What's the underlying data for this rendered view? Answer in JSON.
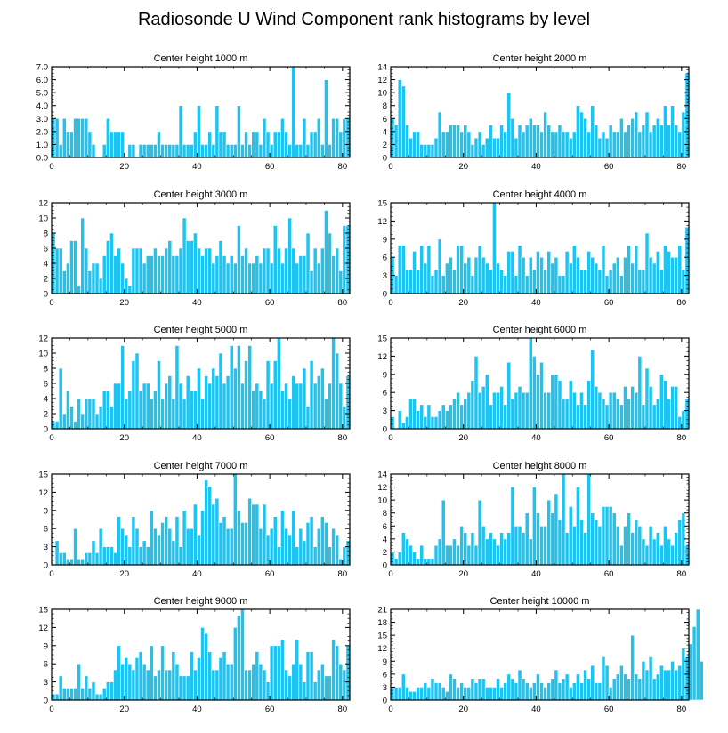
{
  "title": "Radiosonde U Wind Component rank histograms by level",
  "colors": {
    "bar": "#1ec3f0",
    "frame": "#000000",
    "background": "#ffffff"
  },
  "chart_data": [
    {
      "type": "bar",
      "title": "Center height 1000 m",
      "xlim": [
        0,
        82
      ],
      "ylim": [
        0,
        7
      ],
      "xticks": [
        0,
        20,
        40,
        60,
        80
      ],
      "yticks": [
        0,
        1,
        2,
        3,
        4,
        5,
        6,
        7
      ],
      "ytick_labels": [
        "0.0",
        "1.0",
        "2.0",
        "3.0",
        "4.0",
        "5.0",
        "6.0",
        "7.0"
      ],
      "values": [
        3,
        3,
        1,
        3,
        2,
        2,
        3,
        3,
        3,
        3,
        2,
        1,
        0,
        0,
        1,
        3,
        2,
        2,
        2,
        2,
        0,
        1,
        1,
        0,
        1,
        1,
        1,
        1,
        1,
        2,
        1,
        1,
        1,
        1,
        1,
        4,
        1,
        1,
        1,
        2,
        4,
        1,
        1,
        2,
        1,
        4,
        2,
        2,
        1,
        1,
        1,
        4,
        1,
        2,
        1,
        2,
        2,
        1,
        3,
        2,
        1,
        2,
        2,
        3,
        2,
        1,
        7,
        1,
        1,
        3,
        1,
        2,
        2,
        3,
        1,
        6,
        1,
        3,
        3,
        2,
        3,
        3
      ]
    },
    {
      "type": "bar",
      "title": "Center height 2000 m",
      "xlim": [
        0,
        82
      ],
      "ylim": [
        0,
        14
      ],
      "xticks": [
        0,
        20,
        40,
        60,
        80
      ],
      "yticks": [
        0,
        2,
        4,
        6,
        8,
        10,
        12,
        14
      ],
      "ytick_labels": [
        "0",
        "2",
        "4",
        "6",
        "8",
        "10",
        "12",
        "14"
      ],
      "values": [
        6,
        5,
        12,
        11,
        5,
        3,
        4,
        4,
        2,
        2,
        2,
        2,
        3,
        7,
        4,
        4,
        5,
        5,
        5,
        4,
        5,
        4,
        2,
        3,
        4,
        2,
        3,
        5,
        3,
        3,
        5,
        4,
        10,
        6,
        3,
        5,
        4,
        5,
        6,
        5,
        5,
        4,
        7,
        5,
        4,
        4,
        5,
        4,
        4,
        3,
        4,
        8,
        7,
        6,
        4,
        8,
        5,
        3,
        4,
        3,
        5,
        4,
        4,
        6,
        4,
        5,
        6,
        7,
        4,
        5,
        7,
        4,
        5,
        6,
        5,
        8,
        5,
        8,
        5,
        4,
        7,
        13
      ]
    },
    {
      "type": "bar",
      "title": "Center height 3000 m",
      "xlim": [
        0,
        82
      ],
      "ylim": [
        0,
        12
      ],
      "xticks": [
        0,
        20,
        40,
        60,
        80
      ],
      "yticks": [
        0,
        2,
        4,
        6,
        8,
        10,
        12
      ],
      "ytick_labels": [
        "0",
        "2",
        "4",
        "6",
        "8",
        "10",
        "12"
      ],
      "values": [
        8,
        6,
        6,
        3,
        4,
        7,
        7,
        1,
        10,
        6,
        3,
        4,
        4,
        2,
        5,
        7,
        8,
        5,
        6,
        4,
        2,
        1,
        6,
        6,
        6,
        4,
        5,
        5,
        6,
        5,
        5,
        6,
        7,
        5,
        5,
        6,
        10,
        7,
        7,
        8,
        6,
        5,
        6,
        6,
        4,
        5,
        7,
        5,
        4,
        5,
        4,
        9,
        5,
        6,
        4,
        4,
        5,
        4,
        6,
        6,
        4,
        9,
        6,
        4,
        6,
        10,
        6,
        4,
        5,
        5,
        8,
        3,
        6,
        4,
        6,
        11,
        8,
        5,
        6,
        3,
        9,
        9
      ]
    },
    {
      "type": "bar",
      "title": "Center height 4000 m",
      "xlim": [
        0,
        82
      ],
      "ylim": [
        0,
        15
      ],
      "xticks": [
        0,
        20,
        40,
        60,
        80
      ],
      "yticks": [
        0,
        3,
        6,
        9,
        12,
        15
      ],
      "ytick_labels": [
        "0",
        "3",
        "6",
        "9",
        "12",
        "15"
      ],
      "values": [
        6,
        3,
        8,
        8,
        4,
        4,
        7,
        4,
        8,
        5,
        8,
        3,
        4,
        9,
        3,
        5,
        6,
        4,
        8,
        8,
        5,
        6,
        3,
        6,
        8,
        6,
        5,
        4,
        15,
        5,
        4,
        3,
        7,
        7,
        3,
        8,
        6,
        3,
        6,
        4,
        7,
        6,
        4,
        7,
        5,
        6,
        3,
        3,
        7,
        5,
        8,
        6,
        4,
        4,
        7,
        6,
        5,
        4,
        8,
        3,
        4,
        5,
        6,
        3,
        6,
        8,
        5,
        8,
        4,
        4,
        10,
        6,
        5,
        7,
        4,
        8,
        7,
        6,
        6,
        8,
        4,
        11
      ]
    },
    {
      "type": "bar",
      "title": "Center height 5000 m",
      "xlim": [
        0,
        82
      ],
      "ylim": [
        0,
        12
      ],
      "xticks": [
        0,
        20,
        40,
        60,
        80
      ],
      "yticks": [
        0,
        2,
        4,
        6,
        8,
        10,
        12
      ],
      "ytick_labels": [
        "0",
        "2",
        "4",
        "6",
        "8",
        "10",
        "12"
      ],
      "values": [
        1,
        1,
        8,
        2,
        5,
        3,
        1,
        4,
        2,
        4,
        4,
        4,
        2,
        3,
        5,
        5,
        3,
        6,
        6,
        11,
        4,
        5,
        9,
        10,
        5,
        6,
        6,
        4,
        5,
        9,
        4,
        6,
        7,
        4,
        11,
        6,
        4,
        7,
        5,
        5,
        8,
        4,
        7,
        6,
        8,
        7,
        10,
        6,
        7,
        11,
        8,
        11,
        6,
        9,
        11,
        5,
        6,
        5,
        4,
        9,
        6,
        9,
        12,
        5,
        6,
        4,
        7,
        6,
        6,
        8,
        3,
        9,
        6,
        7,
        8,
        4,
        6,
        12,
        10,
        6,
        3,
        7
      ]
    },
    {
      "type": "bar",
      "title": "Center height 6000 m",
      "xlim": [
        0,
        82
      ],
      "ylim": [
        0,
        15
      ],
      "xticks": [
        0,
        20,
        40,
        60,
        80
      ],
      "yticks": [
        0,
        3,
        6,
        9,
        12,
        15
      ],
      "ytick_labels": [
        "0",
        "3",
        "6",
        "9",
        "12",
        "15"
      ],
      "values": [
        2,
        0,
        3,
        1,
        2,
        5,
        5,
        3,
        4,
        2,
        4,
        2,
        2,
        3,
        4,
        3,
        4,
        5,
        6,
        4,
        5,
        6,
        8,
        12,
        6,
        7,
        9,
        4,
        6,
        6,
        7,
        4,
        11,
        5,
        6,
        7,
        6,
        6,
        15,
        12,
        9,
        11,
        6,
        6,
        9,
        9,
        8,
        5,
        5,
        8,
        6,
        4,
        6,
        4,
        8,
        13,
        7,
        6,
        5,
        4,
        6,
        6,
        5,
        4,
        7,
        5,
        7,
        6,
        12,
        4,
        10,
        7,
        4,
        5,
        9,
        8,
        5,
        7,
        7,
        2,
        3,
        5
      ]
    },
    {
      "type": "bar",
      "title": "Center height 7000 m",
      "xlim": [
        0,
        82
      ],
      "ylim": [
        0,
        15
      ],
      "xticks": [
        0,
        20,
        40,
        60,
        80
      ],
      "yticks": [
        0,
        3,
        6,
        9,
        12,
        15
      ],
      "ytick_labels": [
        "0",
        "3",
        "6",
        "9",
        "12",
        "15"
      ],
      "values": [
        0,
        4,
        2,
        2,
        1,
        1,
        6,
        1,
        1,
        2,
        2,
        4,
        2,
        6,
        3,
        3,
        3,
        2,
        8,
        6,
        5,
        3,
        8,
        6,
        3,
        4,
        3,
        9,
        6,
        5,
        7,
        8,
        6,
        4,
        8,
        3,
        9,
        6,
        6,
        10,
        5,
        9,
        14,
        13,
        10,
        11,
        7,
        8,
        6,
        6,
        15,
        9,
        7,
        7,
        11,
        10,
        10,
        6,
        10,
        5,
        6,
        8,
        3,
        9,
        6,
        5,
        9,
        3,
        6,
        4,
        7,
        8,
        3,
        6,
        8,
        7,
        3,
        6,
        5,
        1,
        3,
        4
      ]
    },
    {
      "type": "bar",
      "title": "Center height 8000 m",
      "xlim": [
        0,
        82
      ],
      "ylim": [
        0,
        14
      ],
      "xticks": [
        0,
        20,
        40,
        60,
        80
      ],
      "yticks": [
        0,
        2,
        4,
        6,
        8,
        10,
        12,
        14
      ],
      "ytick_labels": [
        "0",
        "2",
        "4",
        "6",
        "8",
        "10",
        "12",
        "14"
      ],
      "values": [
        2,
        1,
        2,
        5,
        4,
        3,
        2,
        1,
        3,
        1,
        1,
        1,
        3,
        4,
        10,
        3,
        3,
        4,
        3,
        6,
        5,
        3,
        5,
        3,
        10,
        6,
        4,
        5,
        4,
        3,
        5,
        4,
        5,
        12,
        6,
        6,
        5,
        8,
        4,
        12,
        8,
        6,
        6,
        10,
        8,
        11,
        7,
        14,
        5,
        9,
        6,
        12,
        7,
        5,
        14,
        8,
        7,
        6,
        9,
        9,
        9,
        8,
        6,
        3,
        6,
        8,
        5,
        7,
        6,
        4,
        3,
        6,
        4,
        5,
        3,
        6,
        4,
        3,
        5,
        7,
        8,
        3
      ]
    },
    {
      "type": "bar",
      "title": "Center height 9000 m",
      "xlim": [
        0,
        82
      ],
      "ylim": [
        0,
        15
      ],
      "xticks": [
        0,
        20,
        40,
        60,
        80
      ],
      "yticks": [
        0,
        3,
        6,
        9,
        12,
        15
      ],
      "ytick_labels": [
        "0",
        "3",
        "6",
        "9",
        "12",
        "15"
      ],
      "values": [
        1,
        1,
        4,
        2,
        2,
        2,
        2,
        6,
        2,
        4,
        2,
        3,
        1,
        1,
        2,
        3,
        3,
        5,
        9,
        6,
        7,
        6,
        5,
        7,
        8,
        6,
        5,
        9,
        4,
        5,
        9,
        5,
        5,
        8,
        6,
        4,
        4,
        4,
        8,
        5,
        7,
        12,
        11,
        8,
        5,
        5,
        7,
        8,
        6,
        6,
        12,
        14,
        15,
        5,
        5,
        6,
        8,
        6,
        5,
        3,
        9,
        9,
        9,
        10,
        5,
        4,
        6,
        10,
        6,
        3,
        8,
        8,
        3,
        5,
        6,
        4,
        4,
        10,
        9,
        6,
        5,
        9
      ]
    },
    {
      "type": "bar",
      "title": "Center height 10000 m",
      "xlim": [
        0,
        82
      ],
      "ylim": [
        0,
        21
      ],
      "xticks": [
        0,
        20,
        40,
        60,
        80
      ],
      "yticks": [
        0,
        3,
        6,
        9,
        12,
        15,
        18,
        21
      ],
      "ytick_labels": [
        "0",
        "3",
        "6",
        "9",
        "12",
        "15",
        "18",
        "21"
      ],
      "values": [
        3,
        3,
        3,
        6,
        3,
        2,
        2,
        3,
        3,
        4,
        3,
        5,
        4,
        4,
        3,
        2,
        6,
        5,
        3,
        4,
        3,
        3,
        5,
        4,
        5,
        5,
        3,
        3,
        3,
        5,
        3,
        4,
        6,
        5,
        4,
        7,
        5,
        4,
        3,
        4,
        6,
        4,
        3,
        4,
        5,
        7,
        4,
        5,
        6,
        3,
        4,
        6,
        4,
        7,
        5,
        8,
        4,
        4,
        10,
        8,
        3,
        5,
        6,
        8,
        6,
        5,
        15,
        6,
        5,
        9,
        7,
        10,
        5,
        6,
        8,
        7,
        7,
        9,
        7,
        8,
        12,
        10,
        13,
        17,
        21,
        9
      ]
    }
  ]
}
